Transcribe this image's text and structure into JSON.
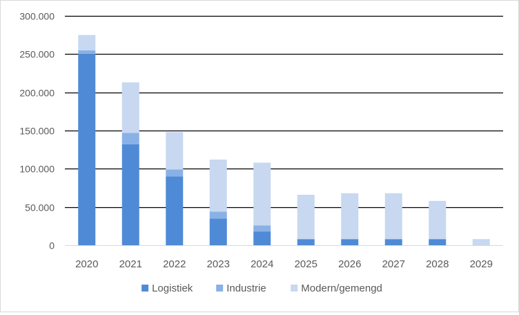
{
  "chart_data": {
    "type": "bar",
    "stacked": true,
    "title": "",
    "xlabel": "",
    "ylabel": "",
    "categories": [
      "2020",
      "2021",
      "2022",
      "2023",
      "2024",
      "2025",
      "2026",
      "2027",
      "2028",
      "2029"
    ],
    "series": [
      {
        "name": "Logistiek",
        "color": "#4f8ad6",
        "values": [
          250000,
          132000,
          90000,
          35000,
          18000,
          8000,
          8000,
          8000,
          8000,
          0
        ]
      },
      {
        "name": "Industrie",
        "color": "#8ab1e6",
        "values": [
          5000,
          15000,
          9000,
          9000,
          8000,
          0,
          0,
          0,
          0,
          0
        ]
      },
      {
        "name": "Modern/gemengd",
        "color": "#c7d8f0",
        "values": [
          20000,
          66000,
          49000,
          68000,
          82000,
          58000,
          60000,
          60000,
          50000,
          8000
        ]
      }
    ],
    "ylim": [
      0,
      300000
    ],
    "yticks": [
      0,
      50000,
      100000,
      150000,
      200000,
      250000,
      300000
    ],
    "ytick_labels": [
      "0",
      "50.000",
      "100.000",
      "150.000",
      "200.000",
      "250.000",
      "300.000"
    ],
    "grid": true,
    "legend_position": "bottom-center"
  }
}
